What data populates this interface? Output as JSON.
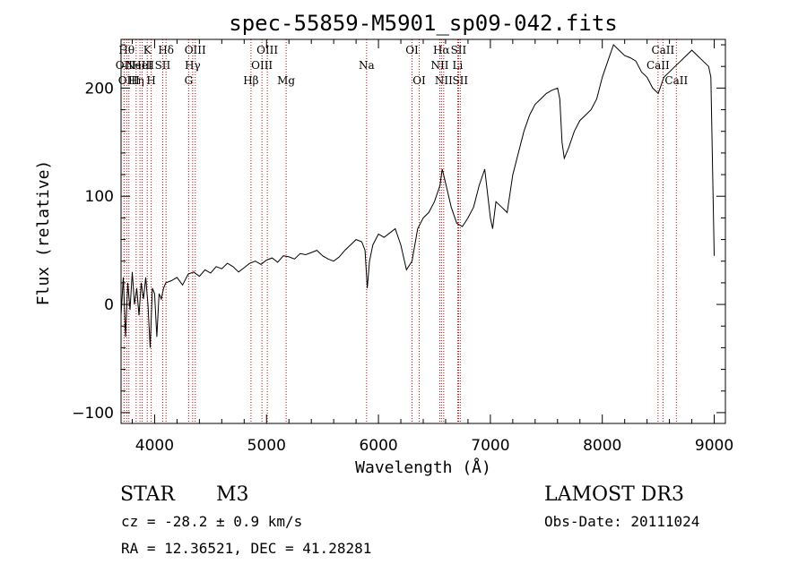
{
  "chart_data": {
    "type": "line",
    "title": "spec-55859-M5901_sp09-042.fits",
    "xlabel": "Wavelength (Å)",
    "ylabel": "Flux (relative)",
    "xlim": [
      3700,
      9100
    ],
    "ylim": [
      -110,
      245
    ],
    "xticks": [
      4000,
      5000,
      6000,
      7000,
      8000,
      9000
    ],
    "yticks": [
      -100,
      0,
      100,
      200
    ],
    "x_minor_step": 200,
    "y_minor_step": 20,
    "line_color": "#000000",
    "marker_color": "#cc0000",
    "spectrum": {
      "x": [
        3700,
        3720,
        3740,
        3760,
        3780,
        3800,
        3820,
        3840,
        3860,
        3880,
        3900,
        3920,
        3940,
        3960,
        3980,
        4000,
        4020,
        4040,
        4060,
        4080,
        4100,
        4150,
        4200,
        4250,
        4300,
        4350,
        4400,
        4450,
        4500,
        4550,
        4600,
        4650,
        4700,
        4750,
        4800,
        4850,
        4900,
        4950,
        5000,
        5050,
        5100,
        5150,
        5200,
        5250,
        5300,
        5350,
        5400,
        5450,
        5500,
        5550,
        5600,
        5650,
        5700,
        5750,
        5800,
        5850,
        5880,
        5900,
        5920,
        5950,
        6000,
        6050,
        6100,
        6150,
        6200,
        6250,
        6300,
        6350,
        6400,
        6450,
        6500,
        6550,
        6570,
        6600,
        6650,
        6700,
        6750,
        6800,
        6850,
        6900,
        6950,
        7000,
        7020,
        7050,
        7100,
        7150,
        7200,
        7250,
        7300,
        7350,
        7400,
        7450,
        7500,
        7550,
        7600,
        7620,
        7640,
        7660,
        7700,
        7750,
        7800,
        7850,
        7900,
        7950,
        8000,
        8050,
        8100,
        8150,
        8200,
        8250,
        8300,
        8350,
        8400,
        8450,
        8500,
        8550,
        8600,
        8650,
        8700,
        8750,
        8800,
        8850,
        8900,
        8950,
        8970,
        9000
      ],
      "y": [
        -10,
        25,
        -30,
        20,
        -5,
        30,
        0,
        15,
        -10,
        20,
        5,
        25,
        0,
        -40,
        15,
        10,
        -30,
        10,
        5,
        15,
        20,
        22,
        25,
        18,
        28,
        30,
        26,
        32,
        29,
        35,
        33,
        38,
        35,
        30,
        34,
        38,
        40,
        37,
        41,
        43,
        39,
        45,
        44,
        42,
        47,
        46,
        48,
        50,
        45,
        42,
        40,
        44,
        50,
        55,
        60,
        58,
        50,
        15,
        40,
        55,
        65,
        62,
        66,
        70,
        55,
        32,
        40,
        70,
        80,
        85,
        95,
        110,
        125,
        112,
        90,
        75,
        72,
        80,
        90,
        110,
        125,
        80,
        70,
        95,
        90,
        85,
        120,
        140,
        160,
        175,
        185,
        190,
        195,
        198,
        200,
        190,
        150,
        135,
        145,
        160,
        170,
        175,
        180,
        190,
        210,
        225,
        240,
        235,
        230,
        228,
        225,
        215,
        210,
        200,
        195,
        210,
        215,
        220,
        225,
        230,
        235,
        230,
        225,
        220,
        210,
        45
      ]
    },
    "lines": [
      {
        "wl": 3727,
        "label": "OII",
        "row": 1
      },
      {
        "wl": 3750,
        "label": "Hθ",
        "row": 0
      },
      {
        "wl": 3770,
        "label": "OIII",
        "row": 2
      },
      {
        "wl": 3835,
        "label": "Hη",
        "row": 2
      },
      {
        "wl": 3869,
        "label": "NeIII",
        "row": 1
      },
      {
        "wl": 3889,
        "label": "HeI",
        "row": 1
      },
      {
        "wl": 3934,
        "label": "K",
        "row": 0
      },
      {
        "wl": 3969,
        "label": "H",
        "row": 2
      },
      {
        "wl": 4072,
        "label": "SII",
        "row": 1
      },
      {
        "wl": 4102,
        "label": "Hδ",
        "row": 0
      },
      {
        "wl": 4304,
        "label": "G",
        "row": 2
      },
      {
        "wl": 4340,
        "label": "Hγ",
        "row": 1
      },
      {
        "wl": 4363,
        "label": "OIII",
        "row": 0
      },
      {
        "wl": 4861,
        "label": "Hβ",
        "row": 2
      },
      {
        "wl": 4959,
        "label": "OIII",
        "row": 1
      },
      {
        "wl": 5007,
        "label": "OIII",
        "row": 0
      },
      {
        "wl": 5175,
        "label": "Mg",
        "row": 2
      },
      {
        "wl": 5894,
        "label": "Na",
        "row": 1
      },
      {
        "wl": 6300,
        "label": "OI",
        "row": 0
      },
      {
        "wl": 6364,
        "label": "OI",
        "row": 2
      },
      {
        "wl": 6548,
        "label": "NII",
        "row": 1
      },
      {
        "wl": 6563,
        "label": "Hα",
        "row": 0
      },
      {
        "wl": 6583,
        "label": "NII",
        "row": 2
      },
      {
        "wl": 6708,
        "label": "Li",
        "row": 1
      },
      {
        "wl": 6716,
        "label": "SII",
        "row": 0
      },
      {
        "wl": 6731,
        "label": "SII",
        "row": 2
      },
      {
        "wl": 8498,
        "label": "CaII",
        "row": 1
      },
      {
        "wl": 8542,
        "label": "CaII",
        "row": 0
      },
      {
        "wl": 8662,
        "label": "CaII",
        "row": 2
      }
    ]
  },
  "info": {
    "object_class": "STAR",
    "subclass": "M3",
    "survey": "LAMOST DR3",
    "redshift": "cz = -28.2 ± 0.9 km/s",
    "obs_date": "Obs-Date: 20111024",
    "coords": "RA =  12.36521, DEC =  41.28281"
  }
}
